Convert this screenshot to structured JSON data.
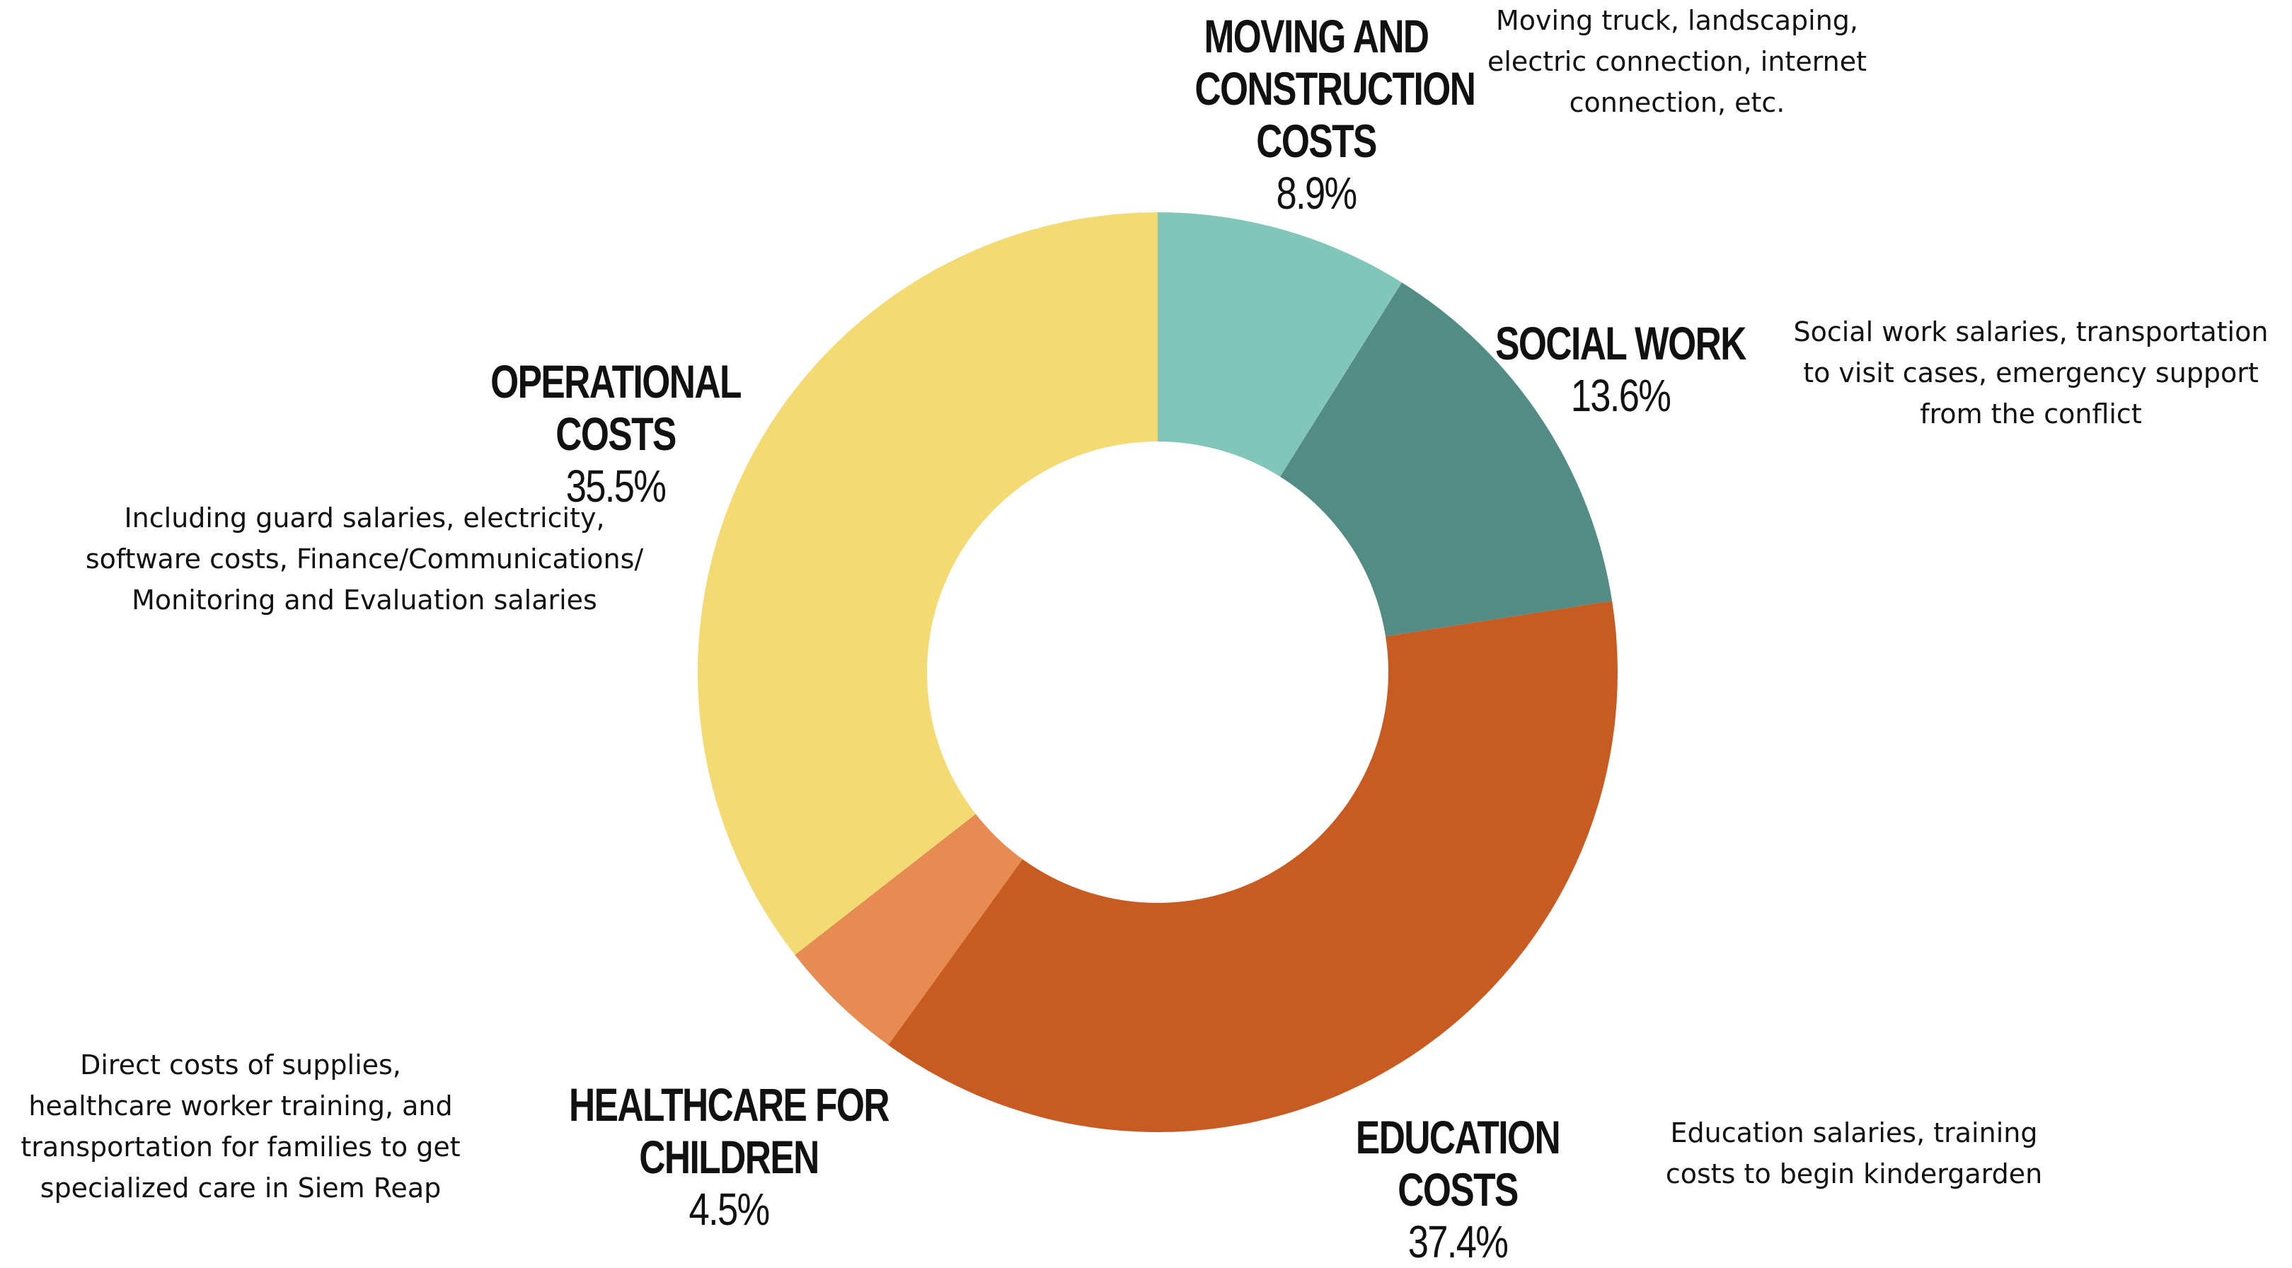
{
  "chart_data": {
    "type": "pie",
    "donut": true,
    "categories": [
      "Moving and Construction Costs",
      "Social Work",
      "Education Costs",
      "Healthcare for Children",
      "Operational Costs"
    ],
    "values": [
      8.9,
      13.6,
      37.4,
      4.5,
      35.5
    ],
    "unit": "%",
    "slices": [
      {
        "key": "moving",
        "name": "Moving and\nConstruction\nCosts",
        "value": 8.9,
        "label": "8.9%",
        "color": "#82C6B9",
        "description": "Moving truck, landscaping,\nelectric connection, internet\nconnection, etc."
      },
      {
        "key": "social",
        "name": "Social Work",
        "value": 13.6,
        "label": "13.6%",
        "color": "#538C84",
        "description": "Social work salaries, transportation\nto visit cases, emergency support\nfrom the conflict"
      },
      {
        "key": "education",
        "name": "Education Costs",
        "value": 37.4,
        "label": "37.4%",
        "color": "#C85B22",
        "description": "Education salaries, training\ncosts to begin kindergarden"
      },
      {
        "key": "healthcare",
        "name": "Healthcare for Children",
        "value": 4.5,
        "label": "4.5%",
        "color": "#E68B51",
        "description": "Direct costs of supplies,\nhealthcare worker training, and\ntransportation for families to get\nspecialized care in Siem Reap"
      },
      {
        "key": "operational",
        "name": "Operational Costs",
        "value": 35.5,
        "label": "35.5%",
        "color": "#F4DA73",
        "description": "Including guard salaries, electricity,\nsoftware costs, Finance/Communications/\nMonitoring and Evaluation salaries"
      }
    ]
  }
}
